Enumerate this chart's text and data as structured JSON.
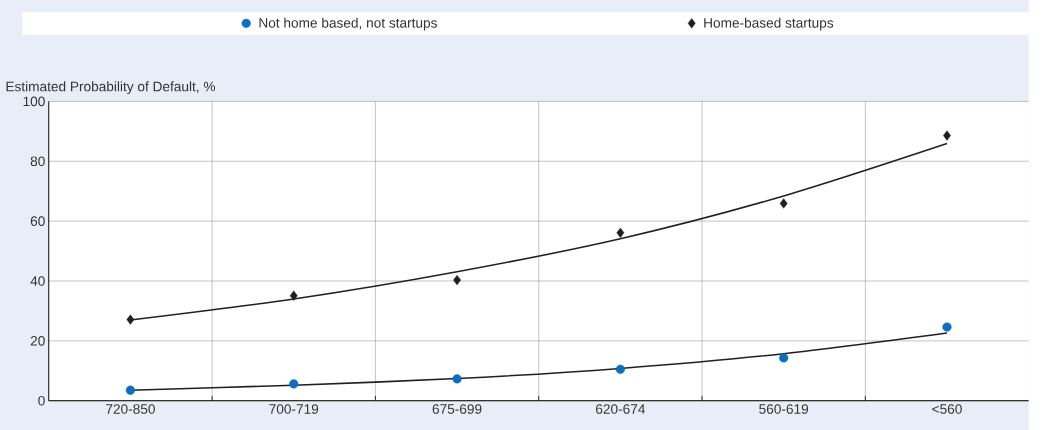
{
  "chart_data": {
    "type": "scatter",
    "ylabel": "Estimated Probability of Default, %",
    "categories": [
      "720-850",
      "700-719",
      "675-699",
      "620-674",
      "560-619",
      "<560"
    ],
    "ylim": [
      0,
      100
    ],
    "yticks": [
      0,
      20,
      40,
      60,
      80,
      100
    ],
    "grid": true,
    "legend": "top",
    "series": [
      {
        "name": "Not home based, not startups",
        "marker": "circle",
        "color": "#0a6fc0",
        "values": [
          3.5,
          5.6,
          7.3,
          10.5,
          14.3,
          24.6
        ]
      },
      {
        "name": "Home-based startups",
        "marker": "diamond",
        "color": "#231f20",
        "values": [
          27.1,
          35.1,
          40.3,
          56.1,
          65.9,
          88.6
        ]
      },
      {
        "type": "line",
        "marker": "none",
        "color": "#231f20",
        "values": [
          3.5,
          5.2,
          7.4,
          10.8,
          15.7,
          22.6
        ]
      },
      {
        "type": "line",
        "marker": "none",
        "color": "#231f20",
        "values": [
          27.0,
          34.0,
          43.1,
          54.1,
          68.4,
          85.9
        ]
      }
    ]
  }
}
